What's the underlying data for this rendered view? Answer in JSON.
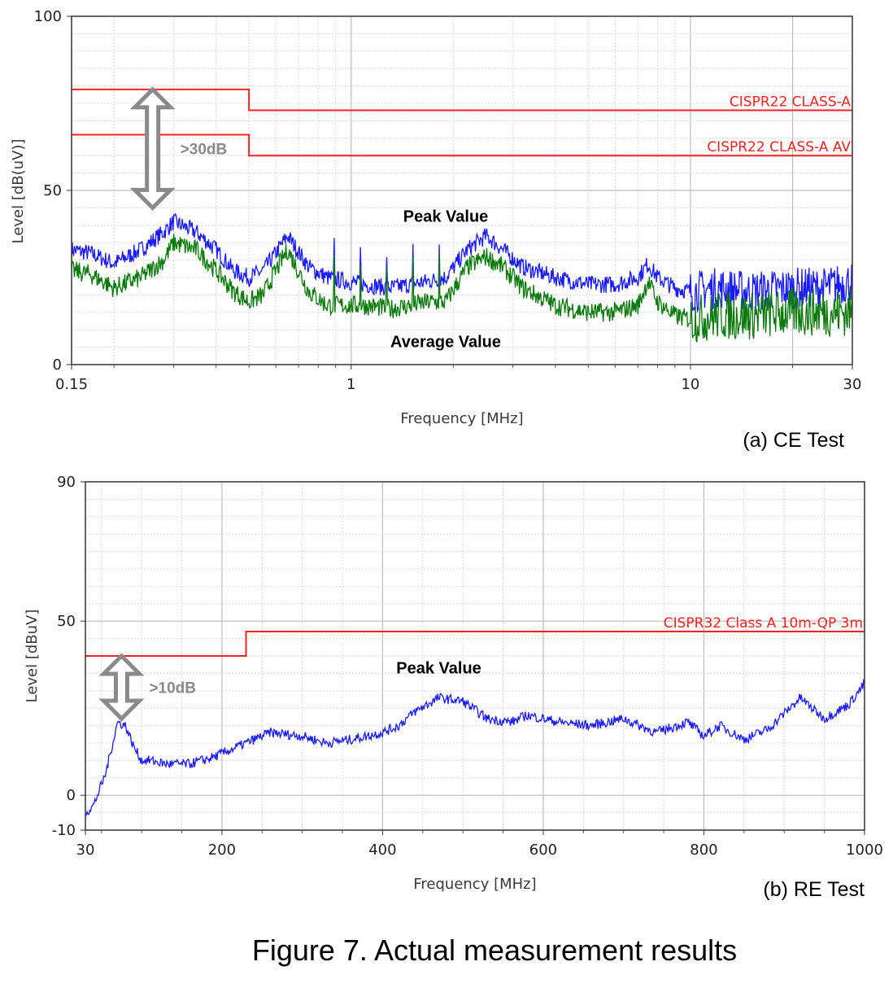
{
  "figure_caption": "Figure 7. Actual measurement results",
  "colors": {
    "limit": "#ff2020",
    "peak": "#1a1aff",
    "average": "#0a7a0a",
    "gap_arrow": "#8a8a8a"
  },
  "chart_data": [
    {
      "type": "line",
      "subcaption": "(a) CE Test",
      "xlabel": "Frequency [MHz]",
      "ylabel": "Level [dB(uV)]",
      "xscale": "log",
      "xlim": [
        0.15,
        30
      ],
      "ylim": [
        0,
        100
      ],
      "xticks": [
        0.15,
        1,
        10,
        30
      ],
      "xtick_labels": [
        "0.15",
        "1",
        "10",
        "30"
      ],
      "yticks": [
        0,
        50,
        100
      ],
      "ytick_labels": [
        "0",
        "50",
        "100"
      ],
      "grid": true,
      "limit_lines": [
        {
          "name": "CISPR22 CLASS-A",
          "points": [
            [
              0.15,
              79
            ],
            [
              0.5,
              79
            ],
            [
              0.5,
              73
            ],
            [
              30,
              73
            ]
          ]
        },
        {
          "name": "CISPR22 CLASS-A AV",
          "points": [
            [
              0.15,
              66
            ],
            [
              0.5,
              66
            ],
            [
              0.5,
              60
            ],
            [
              30,
              60
            ]
          ]
        }
      ],
      "series": [
        {
          "name": "Peak Value",
          "color": "#1a1aff",
          "x": [
            0.15,
            0.17,
            0.2,
            0.24,
            0.28,
            0.3,
            0.35,
            0.4,
            0.45,
            0.5,
            0.55,
            0.6,
            0.65,
            0.75,
            0.85,
            0.95,
            1.1,
            1.3,
            1.5,
            1.7,
            1.9,
            2.2,
            2.5,
            2.8,
            3.2,
            4,
            5,
            6,
            7,
            7.5,
            8,
            9,
            10,
            12,
            15,
            20,
            25,
            30
          ],
          "y": [
            33,
            32,
            29,
            33,
            38,
            41,
            38,
            33,
            27,
            25,
            27,
            32,
            37,
            28,
            25,
            24,
            23,
            22,
            23,
            24,
            25,
            33,
            37,
            33,
            28,
            25,
            23,
            23,
            25,
            29,
            25,
            22,
            21,
            22,
            21,
            22,
            22,
            24
          ]
        },
        {
          "name": "Average Value",
          "color": "#0a7a0a",
          "x": [
            0.15,
            0.17,
            0.2,
            0.24,
            0.28,
            0.3,
            0.35,
            0.4,
            0.45,
            0.5,
            0.55,
            0.6,
            0.65,
            0.75,
            0.85,
            0.95,
            1.1,
            1.3,
            1.5,
            1.7,
            1.9,
            2.2,
            2.5,
            2.8,
            3.2,
            4,
            5,
            6,
            7,
            7.5,
            8,
            9,
            10,
            12,
            15,
            20,
            25,
            30
          ],
          "y": [
            27,
            26,
            22,
            25,
            30,
            35,
            33,
            27,
            21,
            18,
            20,
            27,
            33,
            21,
            17,
            17,
            17,
            16,
            17,
            18,
            18,
            28,
            31,
            28,
            22,
            17,
            15,
            15,
            17,
            24,
            18,
            14,
            13,
            14,
            14,
            15,
            15,
            15
          ]
        }
      ],
      "annotations": [
        {
          "text": "Peak Value",
          "x": 1.9,
          "y": 41
        },
        {
          "text": "Average Value",
          "x": 1.9,
          "y": 5
        },
        {
          "text": ">30dB",
          "type": "double-arrow",
          "x": 0.26,
          "y_from": 45,
          "y_to": 79
        }
      ]
    },
    {
      "type": "line",
      "subcaption": "(b) RE Test",
      "xlabel": "Frequency [MHz]",
      "ylabel": "Level [dBuV]",
      "xscale": "linear",
      "xlim": [
        30,
        1000
      ],
      "ylim": [
        -10,
        90
      ],
      "xticks": [
        30,
        200,
        400,
        600,
        800,
        1000
      ],
      "xtick_labels": [
        "30",
        "200",
        "400",
        "600",
        "800",
        "1000"
      ],
      "yticks": [
        -10,
        0,
        50,
        90
      ],
      "ytick_labels": [
        "-10",
        "0",
        "50",
        "90"
      ],
      "grid": true,
      "limit_lines": [
        {
          "name": "CISPR32 Class A 10m-QP 3m",
          "points": [
            [
              30,
              40
            ],
            [
              230,
              40
            ],
            [
              230,
              47
            ],
            [
              1000,
              47
            ]
          ]
        }
      ],
      "series": [
        {
          "name": "Peak Value",
          "color": "#1a1aff",
          "x": [
            30,
            40,
            55,
            70,
            80,
            90,
            100,
            110,
            130,
            160,
            190,
            220,
            260,
            300,
            330,
            360,
            400,
            420,
            440,
            470,
            500,
            530,
            560,
            580,
            620,
            660,
            700,
            740,
            780,
            800,
            820,
            850,
            880,
            920,
            950,
            980,
            1000
          ],
          "y": [
            -5,
            -3,
            6,
            21,
            20,
            14,
            10,
            10,
            9,
            9,
            11,
            14,
            18,
            17,
            15,
            16,
            18,
            20,
            24,
            28,
            27,
            22,
            21,
            23,
            21,
            20,
            22,
            18,
            21,
            17,
            20,
            16,
            19,
            28,
            22,
            26,
            32
          ]
        }
      ],
      "annotations": [
        {
          "text": "Peak Value",
          "x": 470,
          "y": 35
        },
        {
          "text": ">10dB",
          "type": "double-arrow",
          "x": 75,
          "y_from": 22,
          "y_to": 40
        }
      ]
    }
  ]
}
